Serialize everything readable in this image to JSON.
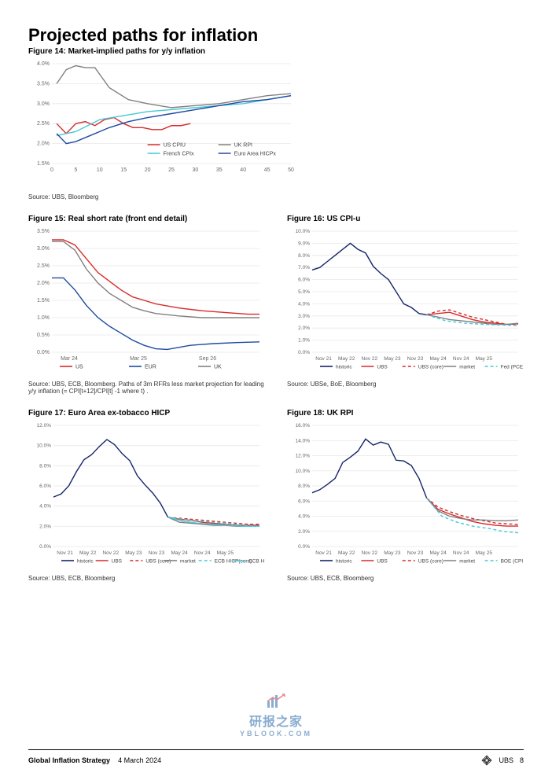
{
  "page": {
    "title": "Projected paths for inflation",
    "footer_left_strong": "Global Inflation Strategy",
    "footer_left_date": "4 March 2024",
    "brand": "UBS",
    "page_number": "8",
    "watermark_main": "研报之家",
    "watermark_sub": "YBLOOK.COM"
  },
  "fig14": {
    "title": "Figure 14: Market-implied paths for y/y inflation",
    "type": "line",
    "x": [
      0,
      5,
      10,
      15,
      20,
      25,
      30,
      35,
      40,
      45,
      50
    ],
    "xlim": [
      0,
      50
    ],
    "ylim": [
      1.5,
      4.0
    ],
    "yticks": [
      1.5,
      2.0,
      2.5,
      3.0,
      3.5,
      4.0
    ],
    "ytick_labels": [
      "1.5%",
      "2.0%",
      "2.5%",
      "3.0%",
      "3.5%",
      "4.0%"
    ],
    "grid_color": "#e8e8e8",
    "background_color": "#ffffff",
    "label_fontsize": 7,
    "line_width": 1.4,
    "series": [
      {
        "name": "US CPIU",
        "color": "#d82a2a",
        "dash": "none",
        "values_x": [
          1,
          3,
          5,
          7,
          9,
          11,
          13,
          15,
          17,
          19,
          21,
          23,
          25,
          27,
          29
        ],
        "values_y": [
          2.5,
          2.25,
          2.5,
          2.55,
          2.45,
          2.6,
          2.65,
          2.5,
          2.4,
          2.4,
          2.35,
          2.35,
          2.45,
          2.45,
          2.5
        ]
      },
      {
        "name": "UK RPI",
        "color": "#808080",
        "dash": "none",
        "values_x": [
          1,
          3,
          5,
          7,
          9,
          12,
          16,
          20,
          25,
          30,
          35,
          40,
          45,
          50
        ],
        "values_y": [
          3.5,
          3.85,
          3.95,
          3.9,
          3.9,
          3.4,
          3.1,
          3.0,
          2.9,
          2.95,
          3.0,
          3.1,
          3.2,
          3.25
        ]
      },
      {
        "name": "French CPIx",
        "color": "#45c8d8",
        "dash": "none",
        "values_x": [
          1,
          5,
          10,
          15,
          20,
          25,
          30,
          35,
          40,
          45,
          50
        ],
        "values_y": [
          2.2,
          2.3,
          2.6,
          2.7,
          2.8,
          2.85,
          2.9,
          2.95,
          3.0,
          3.1,
          3.2
        ]
      },
      {
        "name": "Euro Area HICPx",
        "color": "#1f4aa0",
        "dash": "none",
        "values_x": [
          1,
          3,
          5,
          8,
          12,
          16,
          20,
          25,
          30,
          35,
          40,
          45,
          50
        ],
        "values_y": [
          2.25,
          2.0,
          2.05,
          2.2,
          2.4,
          2.55,
          2.65,
          2.75,
          2.85,
          2.95,
          3.05,
          3.1,
          3.2
        ]
      }
    ],
    "legend_cols": 2,
    "source": "Source: UBS, Bloomberg"
  },
  "fig15": {
    "title": "Figure 15: Real short rate (front end detail)",
    "type": "line",
    "xlim": [
      0,
      36
    ],
    "xticks": [
      3,
      15,
      27,
      33
    ],
    "xtick_labels": [
      "Mar 24",
      "Mar 25",
      "Sep 26",
      ""
    ],
    "ylim": [
      0,
      3.5
    ],
    "yticks": [
      0,
      0.5,
      1,
      1.5,
      2,
      2.5,
      3,
      3.5
    ],
    "ytick_labels": [
      "0.0%",
      "0.5%",
      "1.0%",
      "1.5%",
      "2.0%",
      "2.5%",
      "3.0%",
      "3.5%"
    ],
    "grid_color": "#e8e8e8",
    "label_fontsize": 7,
    "line_width": 1.4,
    "series": [
      {
        "name": "US",
        "color": "#d82a2a",
        "dash": "none",
        "values_x": [
          0,
          2,
          4,
          6,
          8,
          10,
          12,
          14,
          16,
          18,
          22,
          26,
          30,
          34,
          36
        ],
        "values_y": [
          3.25,
          3.25,
          3.1,
          2.7,
          2.3,
          2.05,
          1.8,
          1.6,
          1.5,
          1.4,
          1.28,
          1.2,
          1.15,
          1.1,
          1.1
        ]
      },
      {
        "name": "EUR",
        "color": "#1f4aa0",
        "dash": "none",
        "values_x": [
          0,
          2,
          4,
          6,
          8,
          10,
          12,
          14,
          16,
          18,
          20,
          24,
          28,
          32,
          36
        ],
        "values_y": [
          2.15,
          2.15,
          1.8,
          1.35,
          1.0,
          0.75,
          0.55,
          0.35,
          0.2,
          0.1,
          0.08,
          0.2,
          0.25,
          0.28,
          0.3
        ]
      },
      {
        "name": "UK",
        "color": "#808080",
        "dash": "none",
        "values_x": [
          0,
          2,
          4,
          6,
          8,
          10,
          12,
          14,
          16,
          18,
          22,
          26,
          30,
          34,
          36
        ],
        "values_y": [
          3.2,
          3.2,
          2.95,
          2.4,
          2.0,
          1.7,
          1.5,
          1.3,
          1.2,
          1.12,
          1.05,
          1.0,
          1.0,
          1.0,
          1.0
        ]
      }
    ],
    "source": "Source: UBS, ECB, Bloomberg. Paths of 3m RFRs less market projection for leading y/y inflation (= CPI[t+12]/CPI[t] -1 where t) ."
  },
  "fig16": {
    "title": "Figure 16: US CPI-u",
    "type": "line",
    "xlim": [
      0,
      54
    ],
    "xticks": [
      3,
      9,
      15,
      21,
      27,
      33,
      39,
      45,
      51
    ],
    "xtick_labels": [
      "Nov 21",
      "May 22",
      "Nov 22",
      "May 23",
      "Nov 23",
      "May 24",
      "Nov 24",
      "May 25",
      ""
    ],
    "ylim": [
      0,
      10
    ],
    "yticks": [
      0,
      1,
      2,
      3,
      4,
      5,
      6,
      7,
      8,
      9,
      10
    ],
    "ytick_labels": [
      "0.0%",
      "1.0%",
      "2.0%",
      "3.0%",
      "4.0%",
      "5.0%",
      "6.0%",
      "7.0%",
      "8.0%",
      "9.0%",
      "10.0%"
    ],
    "grid_color": "#e8e8e8",
    "label_fontsize": 6.5,
    "line_width": 1.4,
    "series": [
      {
        "name": "historic",
        "color": "#16256a",
        "dash": "none",
        "values_x": [
          0,
          2,
          4,
          6,
          8,
          10,
          12,
          14,
          16,
          18,
          20,
          22,
          24,
          26,
          28,
          30
        ],
        "values_y": [
          6.8,
          7.0,
          7.5,
          8.0,
          8.5,
          9.0,
          8.5,
          8.2,
          7.1,
          6.5,
          6.0,
          5.0,
          4.0,
          3.7,
          3.2,
          3.1
        ]
      },
      {
        "name": "UBS",
        "color": "#d82a2a",
        "dash": "none",
        "values_x": [
          30,
          33,
          36,
          39,
          42,
          45,
          48,
          51,
          54
        ],
        "values_y": [
          3.1,
          3.2,
          3.3,
          3.0,
          2.7,
          2.5,
          2.4,
          2.3,
          2.35
        ]
      },
      {
        "name": "UBS (core)",
        "color": "#d82a2a",
        "dash": "4,3",
        "values_x": [
          30,
          33,
          36,
          39,
          42,
          45,
          48,
          51,
          54
        ],
        "values_y": [
          3.1,
          3.4,
          3.5,
          3.2,
          2.9,
          2.7,
          2.5,
          2.3,
          2.3
        ]
      },
      {
        "name": "market",
        "color": "#808080",
        "dash": "none",
        "values_x": [
          30,
          33,
          36,
          39,
          42,
          45,
          48,
          51,
          54
        ],
        "values_y": [
          3.1,
          2.9,
          2.7,
          2.6,
          2.5,
          2.4,
          2.3,
          2.3,
          2.4
        ]
      },
      {
        "name": "Fed (PCE)",
        "color": "#45c8d8",
        "dash": "4,3",
        "values_x": [
          30,
          35,
          40,
          45,
          50,
          54
        ],
        "values_y": [
          3.1,
          2.6,
          2.4,
          2.3,
          2.25,
          2.2
        ]
      }
    ],
    "source": "Source: UBSe, BoE, Bloomberg"
  },
  "fig17": {
    "title": "Figure 17: Euro Area ex-tobacco HICP",
    "type": "line",
    "xlim": [
      0,
      54
    ],
    "xticks": [
      3,
      9,
      15,
      21,
      27,
      33,
      39,
      45,
      51
    ],
    "xtick_labels": [
      "Nov 21",
      "May 22",
      "Nov 22",
      "May 23",
      "Nov 23",
      "May 24",
      "Nov 24",
      "May 25",
      ""
    ],
    "ylim": [
      0,
      12
    ],
    "yticks": [
      0,
      2,
      4,
      6,
      8,
      10,
      12
    ],
    "ytick_labels": [
      "0.0%",
      "2.0%",
      "4.0%",
      "6.0%",
      "8.0%",
      "10.0%",
      "12.0%"
    ],
    "grid_color": "#e8e8e8",
    "label_fontsize": 6.5,
    "line_width": 1.4,
    "series": [
      {
        "name": "historic",
        "color": "#16256a",
        "dash": "none",
        "values_x": [
          0,
          2,
          4,
          6,
          8,
          10,
          12,
          14,
          16,
          18,
          20,
          22,
          24,
          26,
          28,
          30
        ],
        "values_y": [
          4.9,
          5.2,
          6.0,
          7.4,
          8.6,
          9.1,
          9.9,
          10.6,
          10.1,
          9.2,
          8.5,
          7.0,
          6.1,
          5.3,
          4.3,
          2.9
        ]
      },
      {
        "name": "UBS",
        "color": "#d82a2a",
        "dash": "none",
        "values_x": [
          30,
          33,
          36,
          39,
          42,
          45,
          48,
          51,
          54
        ],
        "values_y": [
          2.9,
          2.7,
          2.6,
          2.4,
          2.3,
          2.2,
          2.1,
          2.1,
          2.1
        ]
      },
      {
        "name": "UBS (core)",
        "color": "#d82a2a",
        "dash": "4,3",
        "values_x": [
          30,
          33,
          36,
          39,
          42,
          45,
          48,
          51,
          54
        ],
        "values_y": [
          2.9,
          2.8,
          2.7,
          2.6,
          2.5,
          2.4,
          2.3,
          2.2,
          2.2
        ]
      },
      {
        "name": "market",
        "color": "#808080",
        "dash": "none",
        "values_x": [
          30,
          33,
          36,
          39,
          42,
          45,
          48,
          51,
          54
        ],
        "values_y": [
          2.9,
          2.4,
          2.3,
          2.2,
          2.1,
          2.1,
          2.0,
          2.0,
          2.05
        ]
      },
      {
        "name": "ECB HICP(core)",
        "color": "#45c8d8",
        "dash": "4,3",
        "values_x": [
          30,
          34,
          38,
          42,
          46,
          50,
          54
        ],
        "values_y": [
          2.9,
          2.7,
          2.5,
          2.4,
          2.3,
          2.1,
          2.0
        ]
      },
      {
        "name": "ECB HICP",
        "color": "#45c8d8",
        "dash": "none",
        "values_x": [
          30,
          34,
          38,
          42,
          46,
          50,
          54
        ],
        "values_y": [
          2.9,
          2.5,
          2.3,
          2.2,
          2.1,
          2.0,
          2.0
        ]
      }
    ],
    "source": "Source: UBS, ECB, Bloomberg"
  },
  "fig18": {
    "title": "Figure 18: UK RPI",
    "type": "line",
    "xlim": [
      0,
      54
    ],
    "xticks": [
      3,
      9,
      15,
      21,
      27,
      33,
      39,
      45,
      51
    ],
    "xtick_labels": [
      "Nov 21",
      "May 22",
      "Nov 22",
      "May 23",
      "Nov 23",
      "May 24",
      "Nov 24",
      "May 25",
      ""
    ],
    "ylim": [
      0,
      16
    ],
    "yticks": [
      0,
      2,
      4,
      6,
      8,
      10,
      12,
      14,
      16
    ],
    "ytick_labels": [
      "0.0%",
      "2.0%",
      "4.0%",
      "6.0%",
      "8.0%",
      "10.0%",
      "12.0%",
      "14.0%",
      "16.0%"
    ],
    "grid_color": "#e8e8e8",
    "label_fontsize": 6.5,
    "line_width": 1.4,
    "series": [
      {
        "name": "historic",
        "color": "#16256a",
        "dash": "none",
        "values_x": [
          0,
          2,
          4,
          6,
          8,
          10,
          12,
          14,
          16,
          18,
          20,
          22,
          24,
          26,
          28,
          30
        ],
        "values_y": [
          7.1,
          7.5,
          8.2,
          9.0,
          11.1,
          11.8,
          12.6,
          14.2,
          13.4,
          13.8,
          13.5,
          11.4,
          11.3,
          10.7,
          9.0,
          6.4
        ]
      },
      {
        "name": "UBS",
        "color": "#d82a2a",
        "dash": "none",
        "values_x": [
          30,
          33,
          36,
          39,
          42,
          45,
          48,
          51,
          54
        ],
        "values_y": [
          6.4,
          4.9,
          4.3,
          3.8,
          3.3,
          3.0,
          2.8,
          2.7,
          2.7
        ]
      },
      {
        "name": "UBS (core)",
        "color": "#d82a2a",
        "dash": "4,3",
        "values_x": [
          30,
          33,
          36,
          39,
          42,
          45,
          48,
          51,
          54
        ],
        "values_y": [
          6.4,
          5.2,
          4.6,
          4.1,
          3.7,
          3.4,
          3.1,
          3.0,
          2.9
        ]
      },
      {
        "name": "market",
        "color": "#808080",
        "dash": "none",
        "values_x": [
          30,
          33,
          36,
          39,
          42,
          45,
          48,
          51,
          54
        ],
        "values_y": [
          6.4,
          4.7,
          4.0,
          3.7,
          3.5,
          3.5,
          3.4,
          3.4,
          3.5
        ]
      },
      {
        "name": "BOE (CPI)",
        "color": "#45c8d8",
        "dash": "4,3",
        "values_x": [
          30,
          34,
          38,
          42,
          46,
          50,
          54
        ],
        "values_y": [
          6.4,
          4.0,
          3.2,
          2.7,
          2.4,
          2.0,
          1.8
        ]
      }
    ],
    "source": "Source: UBS, ECB, Bloomberg"
  }
}
